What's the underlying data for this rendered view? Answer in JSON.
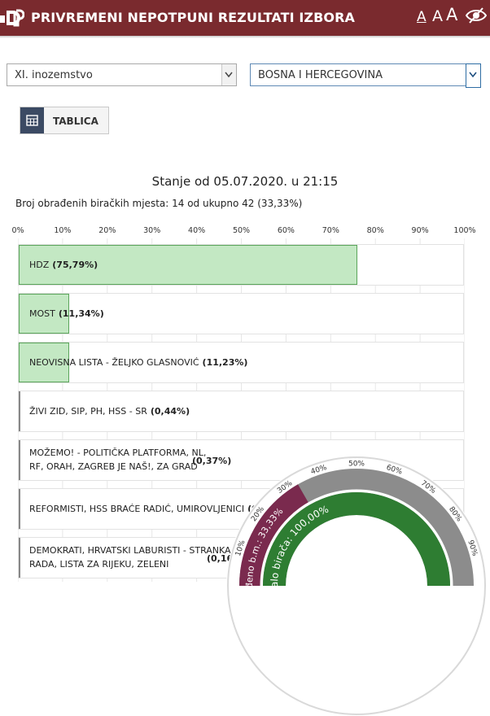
{
  "header": {
    "title": "PRIVREMENI NEPOTPUNI REZULTATI IZBORA",
    "font_small": "A",
    "font_medium": "A",
    "font_large": "A",
    "bg_color": "#7a2a2e"
  },
  "filters": {
    "constituency": "XI. inozemstvo",
    "country": "BOSNA I HERCEGOVINA"
  },
  "view_button": {
    "label": "TABLICA",
    "icon": "table-icon"
  },
  "status": "Stanje od 05.07.2020. u 21:15",
  "processed": "Broj obrađenih biračkih mjesta: 14 od ukupno 42 (33,33%)",
  "chart_data": {
    "type": "bar",
    "orientation": "horizontal",
    "xlim": [
      0,
      100
    ],
    "x_ticks": [
      "0%",
      "10%",
      "20%",
      "30%",
      "40%",
      "50%",
      "60%",
      "70%",
      "80%",
      "90%",
      "100%"
    ],
    "bars": [
      {
        "line1": "HDZ",
        "line2": "",
        "value": 75.79,
        "value_label": "(75,79%)"
      },
      {
        "line1": "MOST",
        "line2": "",
        "value": 11.34,
        "value_label": "(11,34%)"
      },
      {
        "line1": "NEOVISNA LISTA - ŽELJKO GLASNOVIĆ",
        "line2": "",
        "value": 11.23,
        "value_label": "(11,23%)"
      },
      {
        "line1": "ŽIVI ZID, SIP, PH, HSS - SR",
        "line2": "",
        "value": 0.44,
        "value_label": "(0,44%)"
      },
      {
        "line1": "MOŽEMO! - POLITIČKA PLATFORMA, NL,",
        "line2": "RF, ORAH, ZAGREB JE NAŠ!, ZA GRAD",
        "value": 0.37,
        "value_label": "(0,37%)"
      },
      {
        "line1": "REFORMISTI, HSS BRAĆE RADIĆ, UMIROVLJENICI",
        "line2": "",
        "value": 0.22,
        "value_label": "(0,22%)"
      },
      {
        "line1": "DEMOKRATI, HRVATSKI LABURISTI - STRANKA",
        "line2": "RADA, LISTA ZA RIJEKU, ZELENI",
        "value": 0.16,
        "value_label": "(0,16%)"
      }
    ],
    "fill_color": "#c3e8c3"
  },
  "gauge": {
    "ticks": [
      "10%",
      "20%",
      "30%",
      "40%",
      "50%",
      "60%",
      "70%",
      "80%",
      "90%"
    ],
    "processed_label": "Obrađeno b.m.: 33,33%",
    "processed_value": 33.33,
    "turnout_label": "Glasalo birača: 100,00%",
    "turnout_value": 100,
    "processed_color": "#7a2a4e",
    "turnout_color": "#2e7d32"
  }
}
